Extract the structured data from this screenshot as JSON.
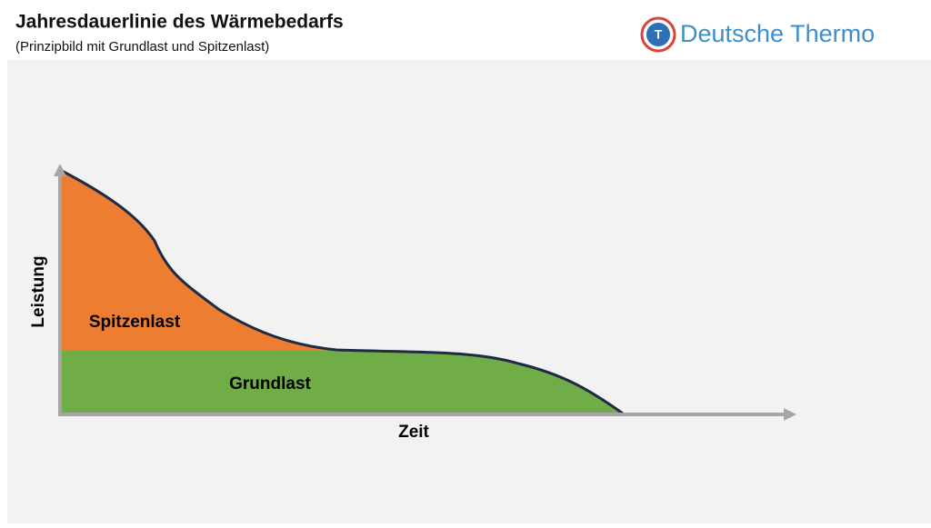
{
  "header": {
    "title": "Jahresdauerlinie des Wärmebedarfs",
    "subtitle": "(Prinzipbild mit Grundlast und Spitzenlast)"
  },
  "logo": {
    "icon_letter": "T",
    "text": "Deutsche Thermo"
  },
  "diagram": {
    "y_axis_label": "Leistung",
    "x_axis_label": "Zeit",
    "upper_area_label": "Spitzenlast",
    "lower_area_label": "Grundlast"
  }
}
